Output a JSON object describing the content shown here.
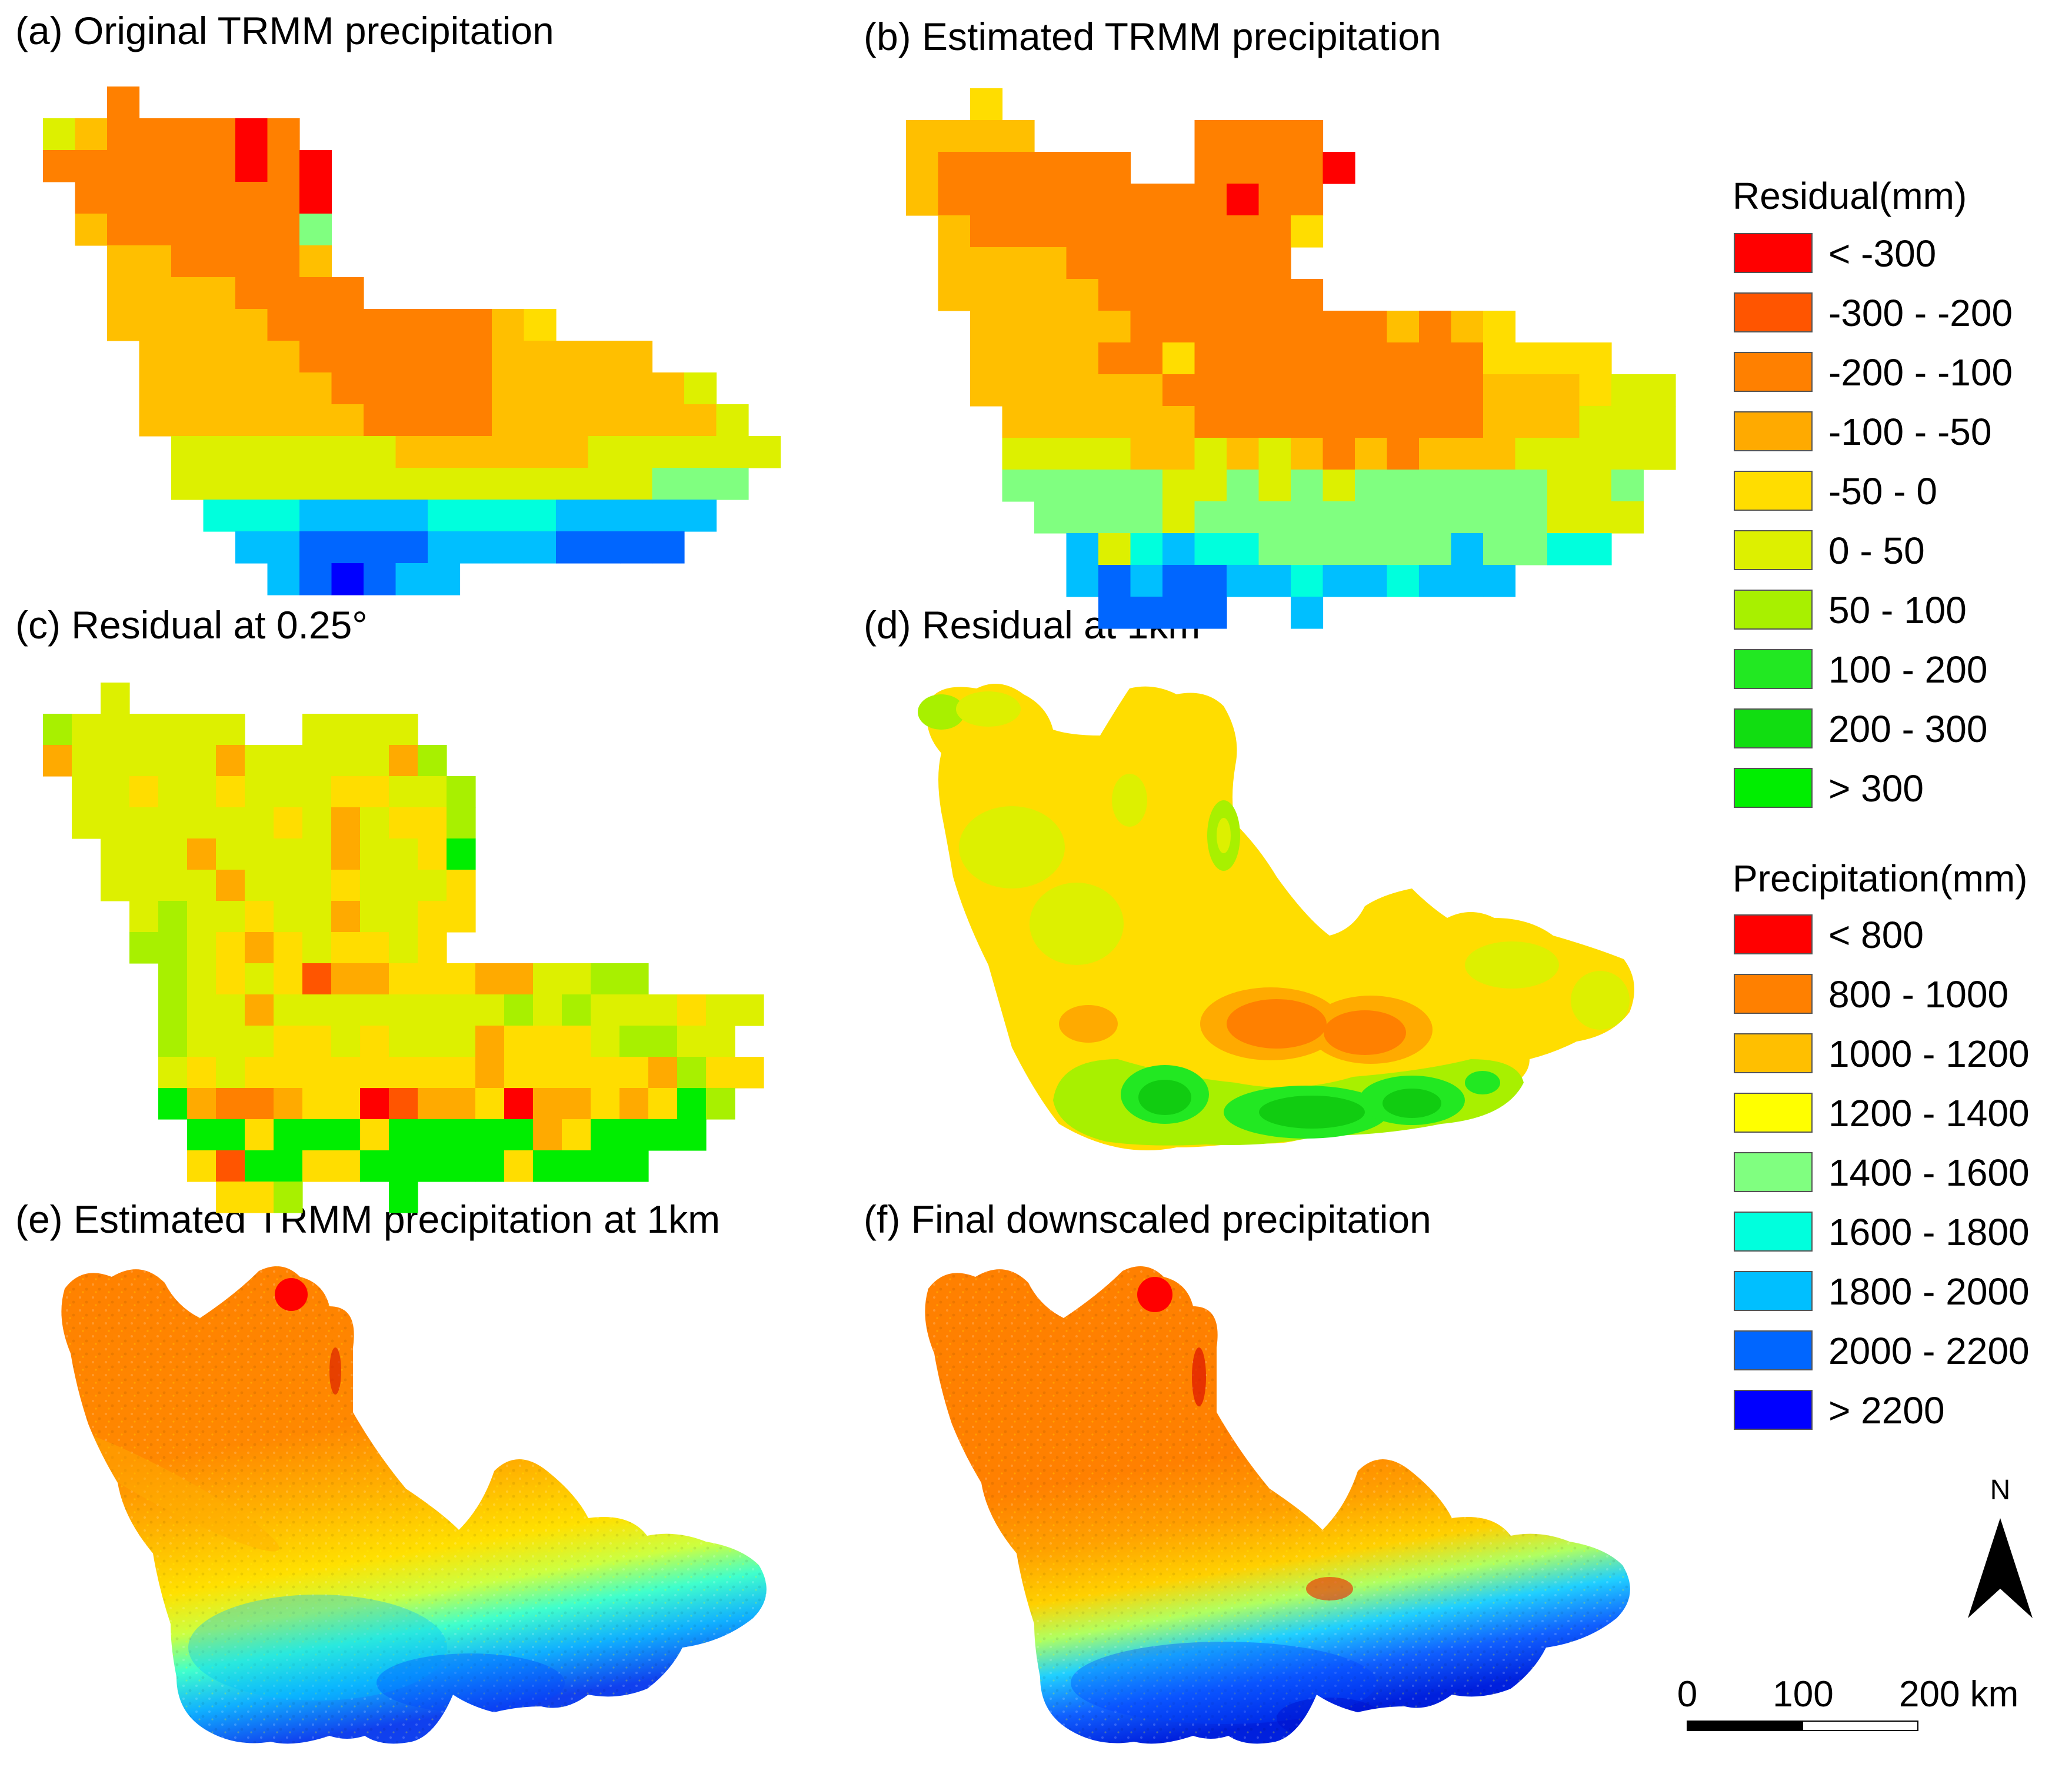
{
  "panels": {
    "a": {
      "title": "(a) Original TRMM precipitation"
    },
    "b": {
      "title": "(b) Estimated TRMM precipitation"
    },
    "c": {
      "title": "(c) Residual at 0.25°"
    },
    "d": {
      "title": "(d) Residual at 1km"
    },
    "e": {
      "title": "(e) Estimated TRMM precipitation at 1km"
    },
    "f": {
      "title": "(f) Final downscaled precipitation"
    }
  },
  "legend": {
    "residual": {
      "title": "Residual(mm)",
      "items": [
        {
          "label": "< -300",
          "color": "#ff0000"
        },
        {
          "label": "-300 - -200",
          "color": "#ff5500"
        },
        {
          "label": "-200 - -100",
          "color": "#ff8000"
        },
        {
          "label": "-100 - -50",
          "color": "#ffaa00"
        },
        {
          "label": "-50 - 0",
          "color": "#ffdd00"
        },
        {
          "label": "0 - 50",
          "color": "#ddf000"
        },
        {
          "label": "50 - 100",
          "color": "#a8f000"
        },
        {
          "label": "100 - 200",
          "color": "#22e822"
        },
        {
          "label": "200 - 300",
          "color": "#11dd11"
        },
        {
          "label": "> 300",
          "color": "#00ee00"
        }
      ]
    },
    "precipitation": {
      "title": "Precipitation(mm)",
      "items": [
        {
          "label": "<  800",
          "color": "#ff0000"
        },
        {
          "label": "800 - 1000",
          "color": "#ff8000"
        },
        {
          "label": "1000 - 1200",
          "color": "#ffbf00"
        },
        {
          "label": "1200 - 1400",
          "color": "#ffff00"
        },
        {
          "label": "1400 - 1600",
          "color": "#80ff80"
        },
        {
          "label": "1600 - 1800",
          "color": "#00ffdd"
        },
        {
          "label": "1800 - 2000",
          "color": "#00bfff"
        },
        {
          "label": "2000 - 2200",
          "color": "#0066ff"
        },
        {
          "label": "> 2200",
          "color": "#0000ff"
        }
      ]
    }
  },
  "north_arrow": {
    "label": "N"
  },
  "scale_bar": {
    "labels": [
      "0",
      "100",
      "200 km"
    ]
  }
}
